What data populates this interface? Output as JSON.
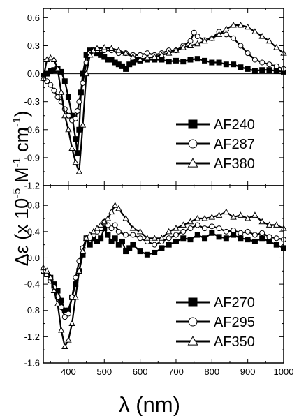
{
  "chart_data": [
    {
      "type": "line",
      "panel": "top",
      "xlim": [
        330,
        1000
      ],
      "ylim": [
        -1.2,
        0.7
      ],
      "yticks": [
        -1.2,
        -0.9,
        -0.6,
        -0.3,
        0.0,
        0.3,
        0.6
      ],
      "ytick_labels": [
        "-1.2",
        "-0.9",
        "-0.6",
        "-0.3",
        "0.0",
        "0.3",
        "0.6"
      ],
      "zero_line": true,
      "legend_position": "bottom-right",
      "series": [
        {
          "name": "AF240",
          "marker": "filled-square",
          "x": [
            330,
            340,
            350,
            360,
            370,
            380,
            390,
            400,
            410,
            420,
            425,
            430,
            435,
            440,
            450,
            460,
            470,
            480,
            490,
            500,
            510,
            520,
            530,
            540,
            550,
            560,
            570,
            580,
            590,
            600,
            620,
            640,
            660,
            680,
            700,
            720,
            740,
            760,
            780,
            800,
            820,
            840,
            860,
            880,
            900,
            920,
            940,
            960,
            980,
            1000
          ],
          "y": [
            -0.02,
            0.0,
            0.03,
            0.04,
            0.05,
            0.02,
            -0.08,
            -0.25,
            -0.45,
            -0.7,
            -0.85,
            -0.6,
            -0.2,
            0.0,
            0.2,
            0.25,
            0.25,
            0.22,
            0.2,
            0.18,
            0.15,
            0.15,
            0.12,
            0.1,
            0.08,
            0.05,
            0.1,
            0.12,
            0.15,
            0.14,
            0.15,
            0.15,
            0.15,
            0.13,
            0.14,
            0.13,
            0.15,
            0.16,
            0.14,
            0.12,
            0.12,
            0.1,
            0.1,
            0.07,
            0.05,
            0.03,
            0.04,
            0.04,
            0.03,
            0.02
          ]
        },
        {
          "name": "AF287",
          "marker": "open-circle",
          "x": [
            330,
            340,
            350,
            360,
            370,
            380,
            390,
            400,
            410,
            420,
            425,
            430,
            440,
            450,
            460,
            470,
            480,
            500,
            520,
            540,
            560,
            580,
            600,
            620,
            640,
            660,
            680,
            700,
            720,
            740,
            750,
            760,
            780,
            800,
            820,
            840,
            860,
            880,
            900,
            920,
            940,
            960,
            980,
            1000
          ],
          "y": [
            -0.05,
            -0.08,
            -0.12,
            -0.18,
            -0.25,
            -0.3,
            -0.38,
            -0.45,
            -0.5,
            -0.48,
            -0.4,
            -0.3,
            -0.1,
            0.12,
            0.22,
            0.24,
            0.25,
            0.25,
            0.25,
            0.22,
            0.22,
            0.2,
            0.2,
            0.22,
            0.2,
            0.22,
            0.25,
            0.25,
            0.3,
            0.35,
            0.44,
            0.4,
            0.36,
            0.38,
            0.45,
            0.42,
            0.38,
            0.3,
            0.22,
            0.15,
            0.12,
            0.1,
            0.08,
            0.05
          ]
        },
        {
          "name": "AF380",
          "marker": "open-triangle",
          "x": [
            330,
            340,
            350,
            360,
            370,
            380,
            390,
            400,
            410,
            420,
            430,
            440,
            450,
            460,
            470,
            480,
            500,
            520,
            540,
            560,
            580,
            600,
            620,
            640,
            660,
            680,
            700,
            720,
            740,
            760,
            780,
            800,
            820,
            840,
            860,
            880,
            900,
            920,
            940,
            960,
            980,
            1000
          ],
          "y": [
            -0.05,
            0.15,
            0.17,
            0.15,
            0.05,
            -0.2,
            -0.45,
            -0.6,
            -0.8,
            -0.95,
            -1.05,
            -0.55,
            0.0,
            0.2,
            0.25,
            0.27,
            0.28,
            0.27,
            0.25,
            0.22,
            0.18,
            0.15,
            0.17,
            0.18,
            0.2,
            0.22,
            0.25,
            0.28,
            0.3,
            0.32,
            0.35,
            0.38,
            0.42,
            0.48,
            0.52,
            0.52,
            0.5,
            0.45,
            0.4,
            0.35,
            0.28,
            0.22
          ]
        }
      ]
    },
    {
      "type": "line",
      "panel": "bottom",
      "xlim": [
        330,
        1000
      ],
      "ylim": [
        -1.6,
        1.1
      ],
      "yticks": [
        -1.6,
        -1.2,
        -0.8,
        -0.4,
        0.0,
        0.4,
        0.8
      ],
      "ytick_labels": [
        "-1.6",
        "-1.2",
        "-0.8",
        "-0.4",
        "0.0",
        "0.4",
        "0.8"
      ],
      "xticks": [
        400,
        500,
        600,
        700,
        800,
        900,
        1000
      ],
      "xtick_labels": [
        "400",
        "500",
        "600",
        "700",
        "800",
        "900",
        "1000"
      ],
      "xlabel": "λ (nm)",
      "zero_line": true,
      "legend_position": "bottom-right",
      "series": [
        {
          "name": "AF270",
          "marker": "filled-square",
          "x": [
            330,
            340,
            350,
            360,
            370,
            380,
            390,
            400,
            410,
            420,
            430,
            440,
            450,
            460,
            470,
            480,
            490,
            500,
            510,
            520,
            530,
            540,
            550,
            560,
            570,
            580,
            600,
            620,
            640,
            660,
            680,
            700,
            720,
            740,
            760,
            780,
            800,
            820,
            840,
            860,
            880,
            900,
            920,
            940,
            960,
            980,
            1000
          ],
          "y": [
            -0.2,
            -0.25,
            -0.3,
            -0.4,
            -0.5,
            -0.65,
            -0.8,
            -0.8,
            -0.6,
            -0.4,
            -0.2,
            0.05,
            0.3,
            0.2,
            0.3,
            0.25,
            0.3,
            0.45,
            0.35,
            0.25,
            0.3,
            0.2,
            0.25,
            0.1,
            0.15,
            0.2,
            0.1,
            0.05,
            0.08,
            0.15,
            0.2,
            0.25,
            0.3,
            0.28,
            0.35,
            0.3,
            0.38,
            0.32,
            0.3,
            0.35,
            0.3,
            0.28,
            0.25,
            0.3,
            0.25,
            0.2,
            0.15
          ]
        },
        {
          "name": "AF295",
          "marker": "open-circle",
          "x": [
            330,
            340,
            350,
            360,
            370,
            380,
            390,
            400,
            410,
            420,
            430,
            440,
            450,
            460,
            470,
            480,
            490,
            500,
            510,
            520,
            530,
            540,
            560,
            580,
            600,
            620,
            640,
            660,
            680,
            700,
            720,
            740,
            760,
            780,
            800,
            820,
            840,
            860,
            880,
            900,
            920,
            940,
            960,
            980,
            1000
          ],
          "y": [
            -0.2,
            -0.25,
            -0.35,
            -0.45,
            -0.6,
            -0.75,
            -0.9,
            -0.85,
            -0.6,
            -0.3,
            -0.05,
            0.15,
            0.3,
            0.3,
            0.35,
            0.4,
            0.45,
            0.55,
            0.5,
            0.45,
            0.5,
            0.4,
            0.35,
            0.35,
            0.3,
            0.25,
            0.2,
            0.25,
            0.3,
            0.35,
            0.4,
            0.45,
            0.5,
            0.45,
            0.48,
            0.45,
            0.4,
            0.42,
            0.38,
            0.4,
            0.35,
            0.38,
            0.32,
            0.3,
            0.28
          ]
        },
        {
          "name": "AF350",
          "marker": "open-triangle",
          "x": [
            330,
            340,
            350,
            360,
            370,
            380,
            390,
            400,
            410,
            420,
            430,
            440,
            450,
            460,
            470,
            480,
            490,
            500,
            510,
            520,
            530,
            540,
            560,
            580,
            600,
            620,
            640,
            660,
            680,
            700,
            720,
            740,
            760,
            780,
            800,
            820,
            840,
            860,
            880,
            900,
            920,
            940,
            960,
            980,
            1000
          ],
          "y": [
            -0.15,
            -0.2,
            -0.3,
            -0.5,
            -0.7,
            -1.1,
            -1.35,
            -1.25,
            -1.0,
            -0.6,
            -0.2,
            0.1,
            0.3,
            0.35,
            0.4,
            0.45,
            0.5,
            0.55,
            0.6,
            0.7,
            0.8,
            0.75,
            0.6,
            0.45,
            0.4,
            0.3,
            0.3,
            0.3,
            0.4,
            0.45,
            0.5,
            0.55,
            0.6,
            0.6,
            0.62,
            0.65,
            0.7,
            0.62,
            0.65,
            0.6,
            0.65,
            0.55,
            0.5,
            0.5,
            0.45
          ]
        }
      ]
    }
  ],
  "shared": {
    "ylabel_parts": [
      "Δε (x 10",
      "-5",
      " M",
      "-1",
      " cm",
      "-1",
      ")"
    ]
  }
}
